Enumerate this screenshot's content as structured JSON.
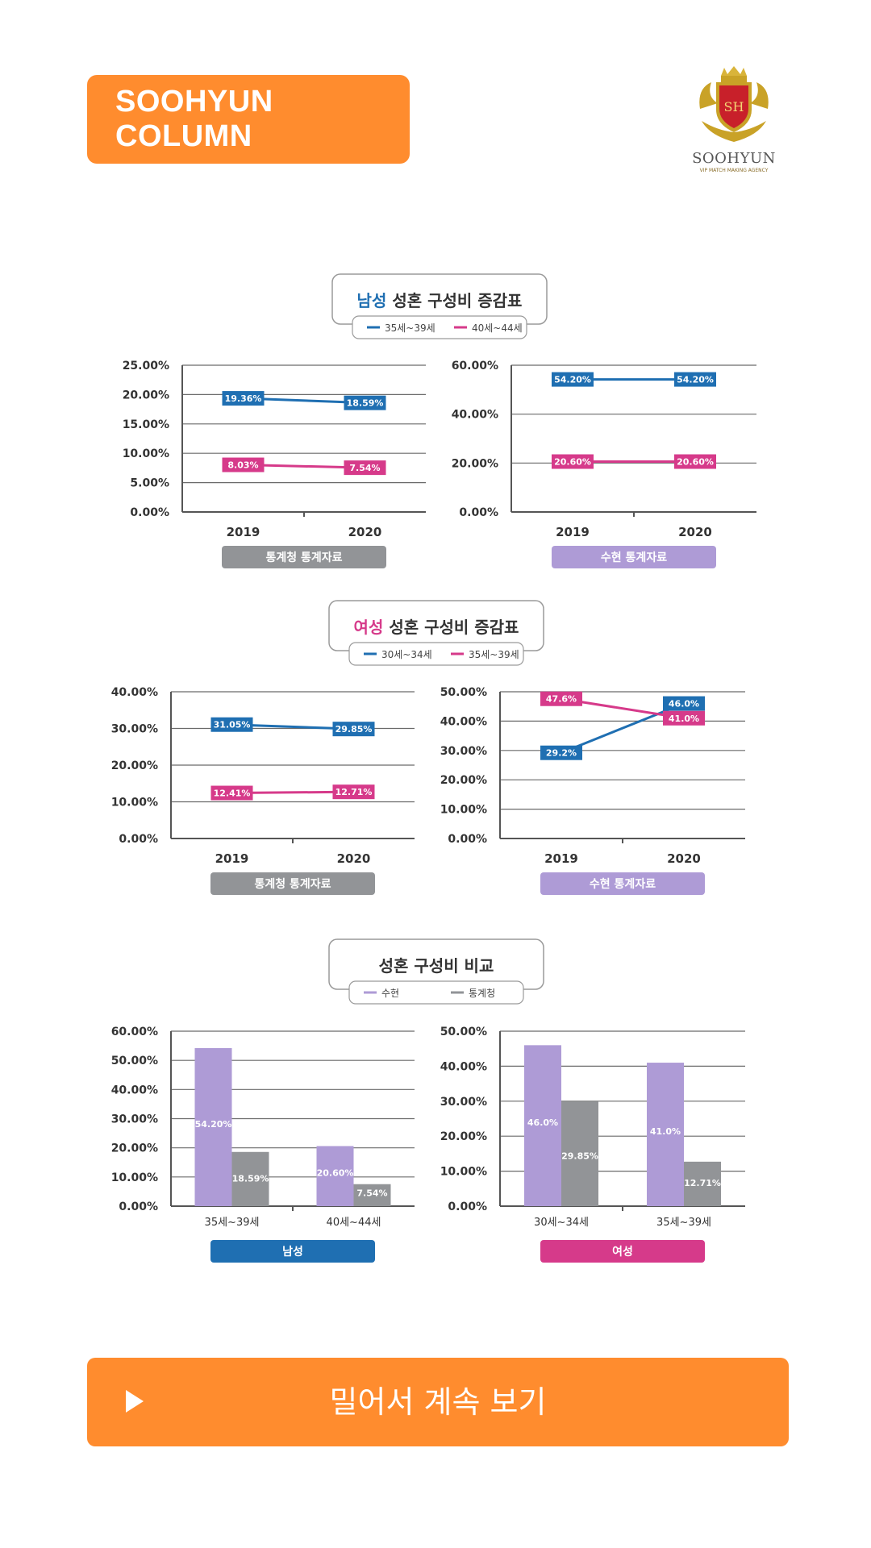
{
  "header": {
    "badge": "SOOHYUN COLUMN"
  },
  "logo": {
    "monogram": "SH",
    "brand": "SOOHYUN",
    "tagline": "VIP MATCH MAKING AGENCY"
  },
  "sections": [
    {
      "title_accent": "남성",
      "title_rest": " 성혼 구성비 증감표",
      "accent_color": "#1f6fb2",
      "legend": [
        {
          "label": "35세~39세",
          "color": "#1f6fb2"
        },
        {
          "label": "40세~44세",
          "color": "#d63a8a"
        }
      ]
    },
    {
      "title_accent": "여성",
      "title_rest": " 성혼 구성비 증감표",
      "accent_color": "#d63a8a",
      "legend": [
        {
          "label": "30세~34세",
          "color": "#1f6fb2"
        },
        {
          "label": "35세~39세",
          "color": "#d63a8a"
        }
      ]
    },
    {
      "title_accent": "",
      "title_rest": "성혼 구성비 비교",
      "accent_color": "#333333",
      "legend": [
        {
          "label": "수현",
          "color": "#ae9bd6"
        },
        {
          "label": "통계청",
          "color": "#929497"
        }
      ]
    }
  ],
  "chart_data": [
    {
      "type": "line",
      "x": [
        "2019",
        "2020"
      ],
      "ylim": [
        0,
        25
      ],
      "yticks": [
        "25.00%",
        "20.00%",
        "15.00%",
        "10.00%",
        "5.00%",
        "0.00%"
      ],
      "series": [
        {
          "name": "35세~39세",
          "values": [
            19.36,
            18.59
          ],
          "labels": [
            "19.36%",
            "18.59%"
          ],
          "color": "#1f6fb2"
        },
        {
          "name": "40세~44세",
          "values": [
            8.03,
            7.54
          ],
          "labels": [
            "8.03%",
            "7.54%"
          ],
          "color": "#d63a8a"
        }
      ],
      "source": "통계청 통계자료",
      "source_color": "#929497"
    },
    {
      "type": "line",
      "x": [
        "2019",
        "2020"
      ],
      "ylim": [
        0,
        60
      ],
      "yticks": [
        "60.00%",
        "40.00%",
        "20.00%",
        "0.00%"
      ],
      "series": [
        {
          "name": "35세~39세",
          "values": [
            54.2,
            54.2
          ],
          "labels": [
            "54.20%",
            "54.20%"
          ],
          "color": "#1f6fb2"
        },
        {
          "name": "40세~44세",
          "values": [
            20.6,
            20.6
          ],
          "labels": [
            "20.60%",
            "20.60%"
          ],
          "color": "#d63a8a"
        }
      ],
      "source": "수현 통계자료",
      "source_color": "#ae9bd6"
    },
    {
      "type": "line",
      "x": [
        "2019",
        "2020"
      ],
      "ylim": [
        0,
        40
      ],
      "yticks": [
        "40.00%",
        "30.00%",
        "20.00%",
        "10.00%",
        "0.00%"
      ],
      "series": [
        {
          "name": "30세~34세",
          "values": [
            31.05,
            29.85
          ],
          "labels": [
            "31.05%",
            "29.85%"
          ],
          "color": "#1f6fb2"
        },
        {
          "name": "35세~39세",
          "values": [
            12.41,
            12.71
          ],
          "labels": [
            "12.41%",
            "12.71%"
          ],
          "color": "#d63a8a"
        }
      ],
      "source": "통계청 통계자료",
      "source_color": "#929497"
    },
    {
      "type": "line",
      "x": [
        "2019",
        "2020"
      ],
      "ylim": [
        0,
        50
      ],
      "yticks": [
        "50.00%",
        "40.00%",
        "30.00%",
        "20.00%",
        "10.00%",
        "0.00%"
      ],
      "series": [
        {
          "name": "30세~34세",
          "values": [
            29.2,
            46.0
          ],
          "labels": [
            "29.2%",
            "46.0%"
          ],
          "color": "#1f6fb2"
        },
        {
          "name": "35세~39세",
          "values": [
            47.6,
            41.0
          ],
          "labels": [
            "47.6%",
            "41.0%"
          ],
          "color": "#d63a8a"
        }
      ],
      "source": "수현 통계자료",
      "source_color": "#ae9bd6"
    },
    {
      "type": "bar",
      "categories": [
        "35세~39세",
        "40세~44세"
      ],
      "ylim": [
        0,
        60
      ],
      "yticks": [
        "60.00%",
        "50.00%",
        "40.00%",
        "30.00%",
        "20.00%",
        "10.00%",
        "0.00%"
      ],
      "series": [
        {
          "name": "수현",
          "values": [
            54.2,
            20.6
          ],
          "labels": [
            "54.20%",
            "20.60%"
          ],
          "color": "#ae9bd6"
        },
        {
          "name": "통계청",
          "values": [
            18.59,
            7.54
          ],
          "labels": [
            "18.59%",
            "7.54%"
          ],
          "color": "#929497"
        }
      ],
      "source": "남성",
      "source_color": "#1f6fb2"
    },
    {
      "type": "bar",
      "categories": [
        "30세~34세",
        "35세~39세"
      ],
      "ylim": [
        0,
        50
      ],
      "yticks": [
        "50.00%",
        "40.00%",
        "30.00%",
        "20.00%",
        "10.00%",
        "0.00%"
      ],
      "series": [
        {
          "name": "수현",
          "values": [
            46.0,
            41.0
          ],
          "labels": [
            "46.0%",
            "41.0%"
          ],
          "color": "#ae9bd6"
        },
        {
          "name": "통계청",
          "values": [
            29.85,
            12.71
          ],
          "labels": [
            "29.85%",
            "12.71%"
          ],
          "color": "#929497"
        }
      ],
      "source": "여성",
      "source_color": "#d63a8a"
    }
  ],
  "cta": {
    "label": "밀어서 계속 보기"
  }
}
